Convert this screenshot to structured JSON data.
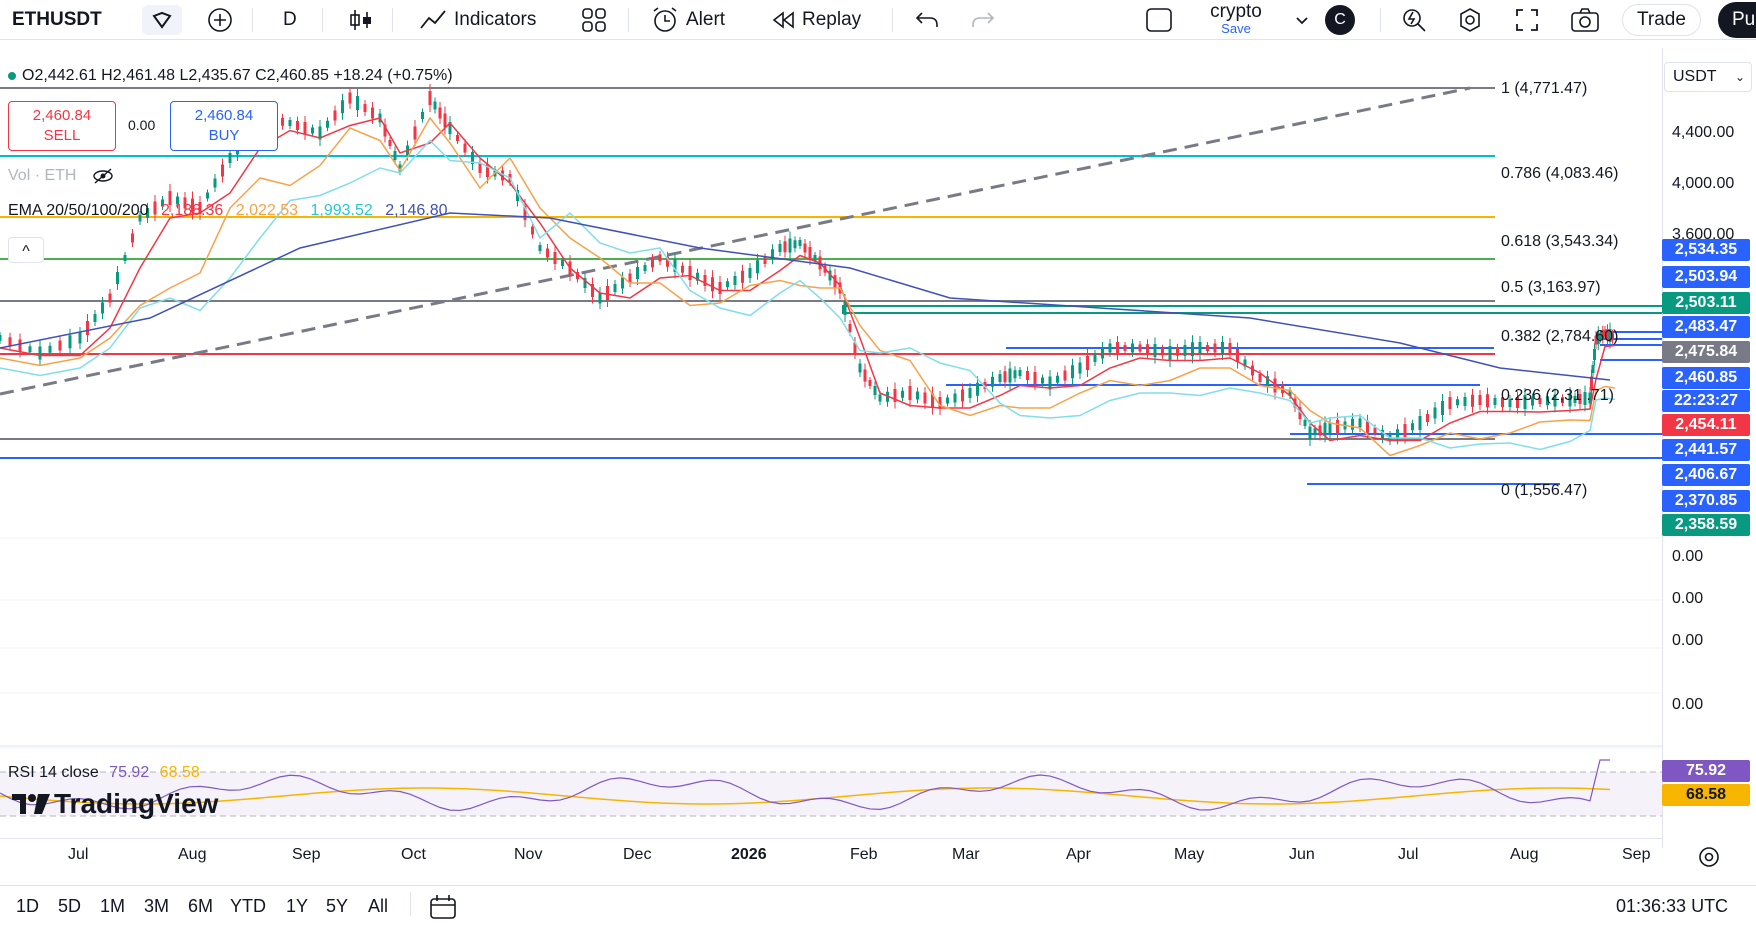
{
  "toolbar": {
    "symbol": "ETHUSDT",
    "interval": "D",
    "indicators": "Indicators",
    "alert": "Alert",
    "replay": "Replay",
    "layout_name": "crypto",
    "save": "Save",
    "avatar_letter": "C",
    "trade": "Trade",
    "publish": "Pu"
  },
  "legend": {
    "ohlc": "O2,442.61 H2,461.48 L2,435.67 C2,460.85 +18.24 (+0.75%)",
    "sell_price": "2,460.84",
    "sell_label": "SELL",
    "spread": "0.00",
    "buy_price": "2,460.84",
    "buy_label": "BUY",
    "vol_label": "Vol · ETH",
    "ema_label": "EMA 20/50/100/200",
    "ema20": "2,188.36",
    "ema50": "2,022.53",
    "ema100": "1,993.52",
    "ema200": "2,146.80",
    "collapse": "^"
  },
  "currency_select": "USDT",
  "fib_levels": [
    {
      "label": "1 (4,771.47)",
      "color": "#787b86"
    },
    {
      "label": "0.786 (4,083.46)",
      "color": "#00bcd4"
    },
    {
      "label": "0.618 (3,543.34)",
      "color": "#f7b500"
    },
    {
      "label": "0.5 (3,163.97)",
      "color": "#4caf50"
    },
    {
      "label": "0.382 (2,784.60)",
      "color": "#787b86"
    },
    {
      "label": "0.236 (2,31  .71)",
      "color": "#f23645"
    },
    {
      "label": "0 (1,556.47)",
      "color": "#787b86"
    }
  ],
  "price_axis": {
    "labels": [
      "4,400.00",
      "4,000.00",
      "3,600.00"
    ],
    "zero_labels": [
      "0.00",
      "0.00",
      "0.00",
      "0.00"
    ]
  },
  "price_tags": [
    {
      "value": "2,534.35",
      "color": "#2962ff"
    },
    {
      "value": "2,503.94",
      "color": "#2962ff"
    },
    {
      "value": "2,503.11",
      "color": "#089981"
    },
    {
      "value": "2,483.47",
      "color": "#2962ff"
    },
    {
      "value": "2,475.84",
      "color": "#787b86"
    },
    {
      "value": "2,460.85",
      "color": "#2962ff"
    },
    {
      "value": "22:23:27",
      "color": "#2962ff"
    },
    {
      "value": "2,454.11",
      "color": "#f23645"
    },
    {
      "value": "2,441.57",
      "color": "#2962ff"
    },
    {
      "value": "2,406.67",
      "color": "#2962ff"
    },
    {
      "value": "2,370.85",
      "color": "#2962ff"
    },
    {
      "value": "2,358.59",
      "color": "#089981"
    }
  ],
  "rsi": {
    "label": "RSI 14 close",
    "value1": "75.92",
    "value2": "68.58",
    "tag1": "75.92",
    "tag2": "68.58"
  },
  "logo_text": "TradingView",
  "time_axis": [
    "Jul",
    "Aug",
    "Sep",
    "Oct",
    "Nov",
    "Dec",
    "2026",
    "Feb",
    "Mar",
    "Apr",
    "May",
    "Jun",
    "Jul",
    "Aug",
    "Sep"
  ],
  "ranges": [
    "1D",
    "5D",
    "1M",
    "3M",
    "6M",
    "YTD",
    "1Y",
    "5Y",
    "All"
  ],
  "clock": "01:36:33 UTC",
  "colors": {
    "up": "#089981",
    "down": "#f23645",
    "ema20": "#f23645",
    "ema50": "#f7a24a",
    "ema100": "#80deea",
    "ema200": "#3f51b5"
  }
}
